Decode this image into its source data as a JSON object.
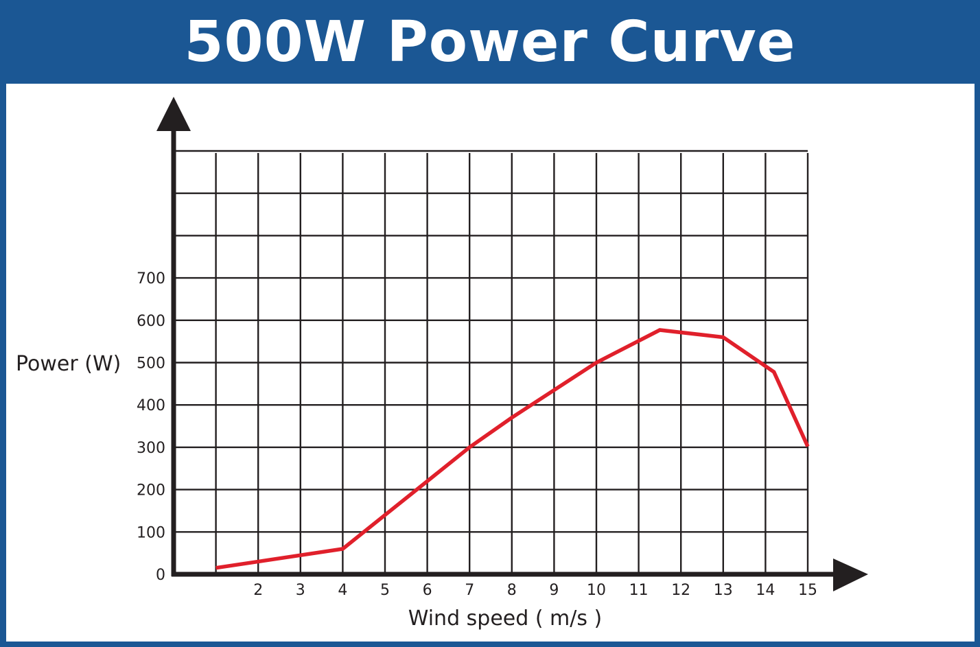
{
  "title": "500W Power Curve",
  "colors": {
    "frame": "#1b5794",
    "panel": "#ffffff",
    "grid": "#231f20",
    "axis": "#231f20",
    "line": "#e0202b"
  },
  "chart_data": {
    "type": "line",
    "title": "500W Power Curve",
    "xlabel": "Wind speed ( m/s )",
    "ylabel": "Power (W)",
    "xlim": [
      0,
      15
    ],
    "ylim": [
      0,
      1000
    ],
    "grid": true,
    "x_ticks": [
      "2",
      "3",
      "4",
      "5",
      "6",
      "7",
      "8",
      "9",
      "10",
      "11",
      "12",
      "13",
      "14",
      "15"
    ],
    "y_ticks": [
      "0",
      "100",
      "200",
      "300",
      "400",
      "500",
      "600",
      "700"
    ],
    "series": [
      {
        "x": [
          1,
          4,
          5,
          6,
          6.5,
          7,
          8,
          9,
          10,
          11.5,
          13,
          14.2,
          15
        ],
        "y": [
          15,
          60,
          140,
          220,
          260,
          300,
          370,
          435,
          500,
          577,
          560,
          478,
          302
        ]
      }
    ]
  }
}
